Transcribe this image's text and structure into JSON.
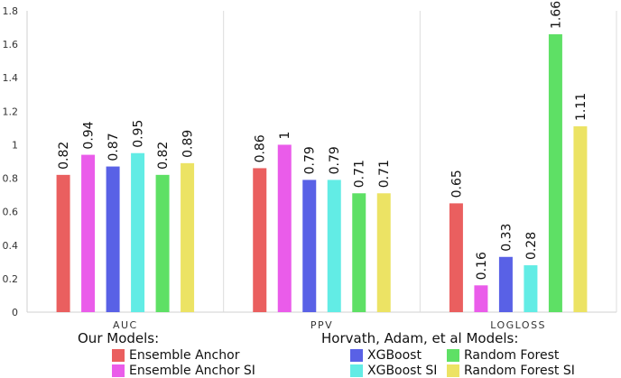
{
  "chart_data": {
    "type": "bar",
    "categories": [
      "AUC",
      "PPV",
      "LOGLOSS"
    ],
    "series": [
      {
        "name": "Ensemble Anchor",
        "color": "#ea5f5f",
        "values": [
          0.82,
          0.86,
          0.65
        ],
        "labels": [
          "0.82",
          "0.86",
          "0.65"
        ]
      },
      {
        "name": "Ensemble Anchor SI",
        "color": "#ea5cea",
        "values": [
          0.94,
          1.0,
          0.16
        ],
        "labels": [
          "0.94",
          "1",
          "0.16"
        ]
      },
      {
        "name": "XGBoost",
        "color": "#5961e6",
        "values": [
          0.87,
          0.79,
          0.33
        ],
        "labels": [
          "0.87",
          "0.79",
          "0.33"
        ]
      },
      {
        "name": "XGBoost SI",
        "color": "#62ece5",
        "values": [
          0.95,
          0.79,
          0.28
        ],
        "labels": [
          "0.95",
          "0.79",
          "0.28"
        ]
      },
      {
        "name": "Random Forest",
        "color": "#5ee065",
        "values": [
          0.82,
          0.71,
          1.66
        ],
        "labels": [
          "0.82",
          "0.71",
          "1.66"
        ]
      },
      {
        "name": "Random Forest SI",
        "color": "#ece364",
        "values": [
          0.89,
          0.71,
          1.11
        ],
        "labels": [
          "0.89",
          "0.71",
          "1.11"
        ]
      }
    ],
    "ylim": [
      0,
      1.8
    ],
    "yticks": [
      "0",
      "0.2",
      "0.4",
      "0.6",
      "0.8",
      "1",
      "1.2",
      "1.4",
      "1.6",
      "1.8"
    ],
    "grid": "vertical separators between categories",
    "legend": {
      "groups": [
        {
          "title": "Our Models:",
          "items": [
            "Ensemble Anchor",
            "Ensemble Anchor SI"
          ]
        },
        {
          "title": "Horvath, Adam, et al Models:",
          "items": [
            "XGBoost",
            "Random Forest",
            "XGBoost SI",
            "Random Forest SI"
          ]
        }
      ],
      "placement": "bottom"
    }
  }
}
